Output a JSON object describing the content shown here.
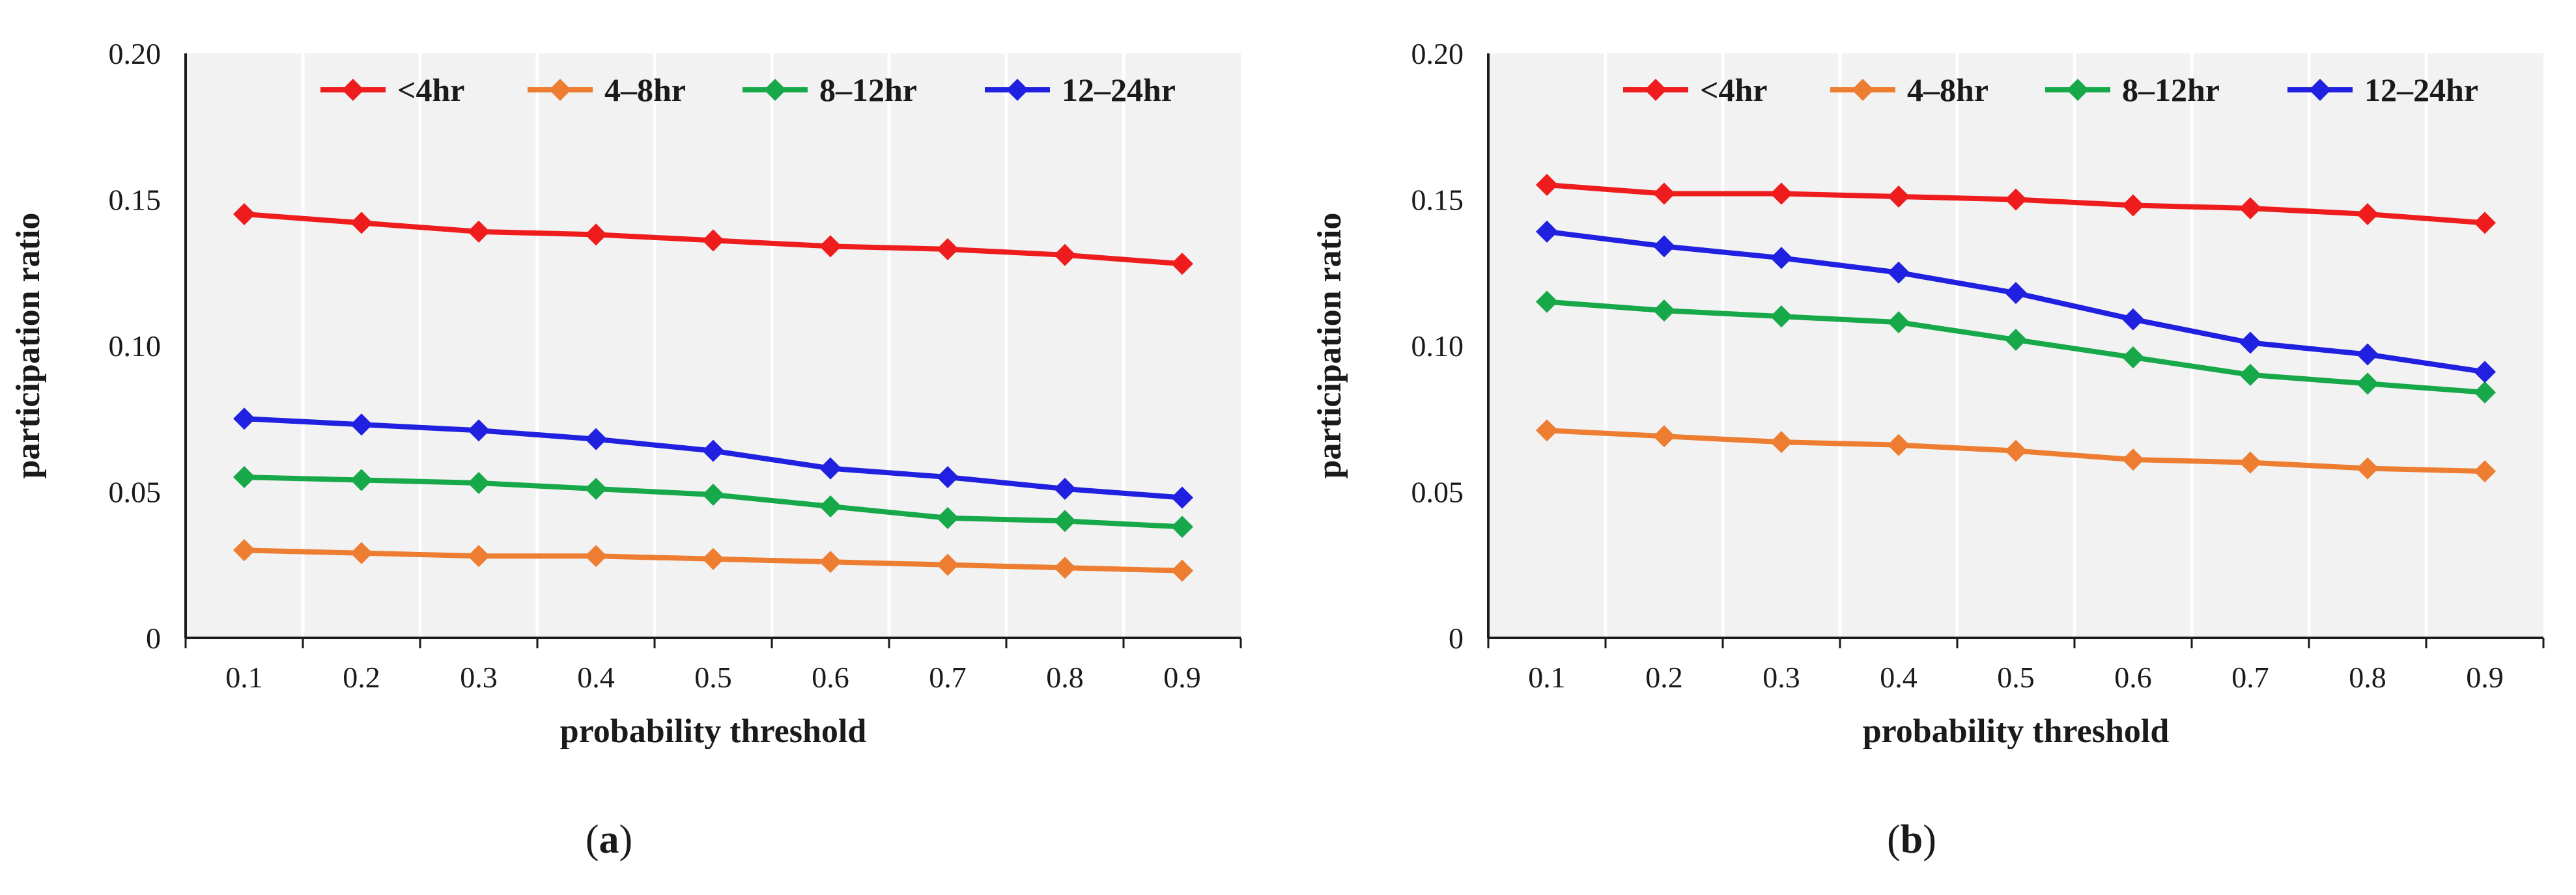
{
  "chart_data": [
    {
      "type": "line",
      "panel": "a",
      "caption_open": "(",
      "caption_letter": "a",
      "caption_close": ")",
      "xlabel": "probability threshold",
      "ylabel": "participation ratio",
      "x": [
        0.1,
        0.2,
        0.3,
        0.4,
        0.5,
        0.6,
        0.7,
        0.8,
        0.9
      ],
      "x_tick_labels": [
        "0.1",
        "0.2",
        "0.3",
        "0.4",
        "0.5",
        "0.6",
        "0.7",
        "0.8",
        "0.9"
      ],
      "y_tick_labels": [
        "0",
        "0.05",
        "0.10",
        "0.15",
        "0.20"
      ],
      "y_ticks": [
        0,
        0.05,
        0.1,
        0.15,
        0.2
      ],
      "ylim": [
        0,
        0.2
      ],
      "grid": "vertical",
      "legend_position": "top",
      "series": [
        {
          "name": "<4hr",
          "color": "#ee1c1c",
          "values": [
            0.145,
            0.142,
            0.139,
            0.138,
            0.136,
            0.134,
            0.133,
            0.131,
            0.128
          ]
        },
        {
          "name": "4–8hr",
          "color": "#ed7d31",
          "values": [
            0.03,
            0.029,
            0.028,
            0.028,
            0.027,
            0.026,
            0.025,
            0.024,
            0.023
          ]
        },
        {
          "name": "8–12hr",
          "color": "#17a84a",
          "values": [
            0.055,
            0.054,
            0.053,
            0.051,
            0.049,
            0.045,
            0.041,
            0.04,
            0.038
          ]
        },
        {
          "name": "12–24hr",
          "color": "#2020e0",
          "values": [
            0.075,
            0.073,
            0.071,
            0.068,
            0.064,
            0.058,
            0.055,
            0.051,
            0.048
          ]
        }
      ]
    },
    {
      "type": "line",
      "panel": "b",
      "caption_open": "(",
      "caption_letter": "b",
      "caption_close": ")",
      "xlabel": "probability threshold",
      "ylabel": "participation ratio",
      "x": [
        0.1,
        0.2,
        0.3,
        0.4,
        0.5,
        0.6,
        0.7,
        0.8,
        0.9
      ],
      "x_tick_labels": [
        "0.1",
        "0.2",
        "0.3",
        "0.4",
        "0.5",
        "0.6",
        "0.7",
        "0.8",
        "0.9"
      ],
      "y_tick_labels": [
        "0",
        "0.05",
        "0.10",
        "0.15",
        "0.20"
      ],
      "y_ticks": [
        0,
        0.05,
        0.1,
        0.15,
        0.2
      ],
      "ylim": [
        0,
        0.2
      ],
      "grid": "vertical",
      "legend_position": "top",
      "series": [
        {
          "name": "<4hr",
          "color": "#ee1c1c",
          "values": [
            0.155,
            0.152,
            0.152,
            0.151,
            0.15,
            0.148,
            0.147,
            0.145,
            0.142
          ]
        },
        {
          "name": "4–8hr",
          "color": "#ed7d31",
          "values": [
            0.071,
            0.069,
            0.067,
            0.066,
            0.064,
            0.061,
            0.06,
            0.058,
            0.057
          ]
        },
        {
          "name": "8–12hr",
          "color": "#17a84a",
          "values": [
            0.115,
            0.112,
            0.11,
            0.108,
            0.102,
            0.096,
            0.09,
            0.087,
            0.084
          ]
        },
        {
          "name": "12–24hr",
          "color": "#2020e0",
          "values": [
            0.139,
            0.134,
            0.13,
            0.125,
            0.118,
            0.109,
            0.101,
            0.097,
            0.091
          ]
        }
      ]
    }
  ]
}
